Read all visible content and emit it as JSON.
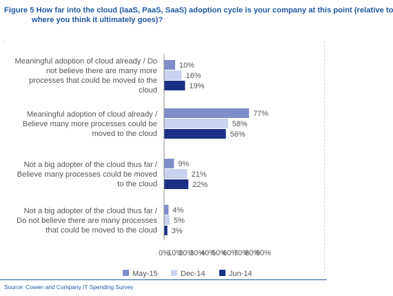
{
  "title": {
    "line1": "Figure 5 How far into the cloud (IaaS, PaaS, SaaS) adoption cycle is your company at this point (relative to",
    "line2": "where you think it ultimately goes)?"
  },
  "stray_mark": ".",
  "source": "Source: Cowen and Company IT Spending Survey",
  "colors": {
    "May-15": "#7f8ec9",
    "Dec-14": "#c9d2f0",
    "Jun-14": "#1a2f86",
    "title": "#1f58a0"
  },
  "chart_data": {
    "type": "bar",
    "orientation": "horizontal",
    "categories": [
      [
        "Meaningful adoption of cloud already / Do",
        "not believe there are many more",
        "processes that could be moved to the",
        "cloud"
      ],
      [
        "Meaningful adoption of cloud already /",
        "Believe many more processes could be",
        "moved to the cloud"
      ],
      [
        "Not a big adopter of the cloud thus far /",
        "Believe many processes could be moved",
        "to the cloud"
      ],
      [
        "Not a big adopter of the cloud thus far /",
        "Do not believe there are many processes",
        "that could be moved to the cloud"
      ]
    ],
    "series": [
      {
        "name": "May-15",
        "values": [
          10,
          77,
          9,
          4
        ],
        "labels": [
          "10%",
          "77%",
          "9%",
          "4%"
        ]
      },
      {
        "name": "Dec-14",
        "values": [
          16,
          58,
          21,
          5
        ],
        "labels": [
          "16%",
          "58%",
          "21%",
          "5%"
        ]
      },
      {
        "name": "Jun-14",
        "values": [
          19,
          56,
          22,
          3
        ],
        "labels": [
          "19%",
          "56%",
          "22%",
          "3%"
        ]
      }
    ],
    "xticks": [
      "0%",
      "10%",
      "20%",
      "30%",
      "40%",
      "50%",
      "60%",
      "70%",
      "80%",
      "90%"
    ],
    "xlim": [
      0,
      90
    ],
    "grid": false,
    "legend": "bottom"
  }
}
